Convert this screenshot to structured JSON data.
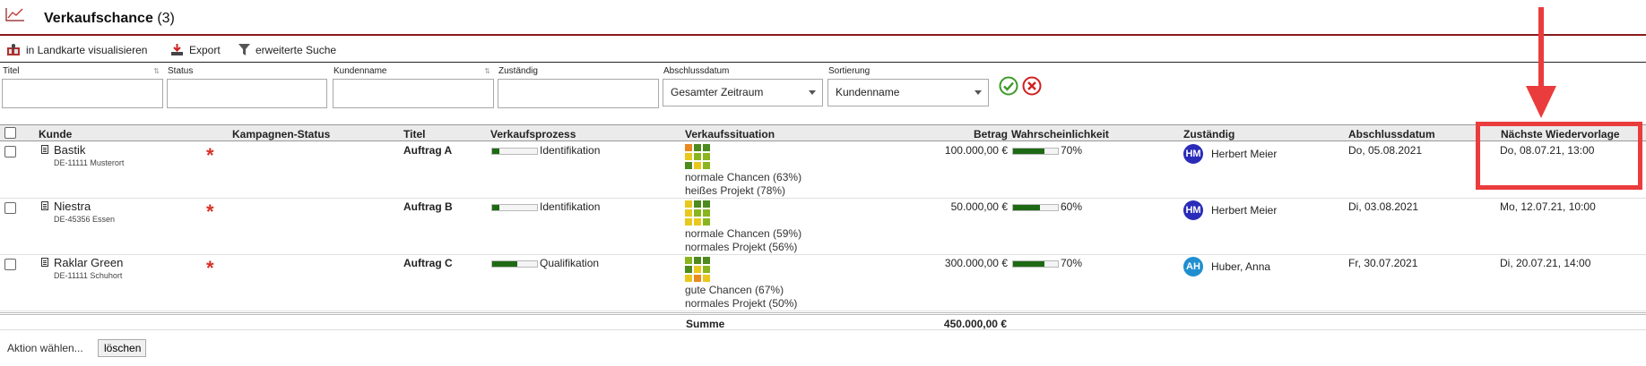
{
  "header": {
    "title": "Verkaufschance",
    "count": "(3)"
  },
  "toolbar": {
    "map_label": "in Landkarte visualisieren",
    "export_label": "Export",
    "search_label": "erweiterte Suche"
  },
  "filters": {
    "titel_label": "Titel",
    "status_label": "Status",
    "kundenname_label": "Kundenname",
    "zustaendig_label": "Zuständig",
    "abschlussdatum_label": "Abschlussdatum",
    "abschlussdatum_value": "Gesamter Zeitraum",
    "sortierung_label": "Sortierung",
    "sortierung_value": "Kundenname"
  },
  "columns": {
    "kunde": "Kunde",
    "kampagnen_status": "Kampagnen-Status",
    "titel": "Titel",
    "verkaufsprozess": "Verkaufsprozess",
    "verkaufssituation": "Verkaufssituation",
    "betrag": "Betrag",
    "wahrscheinlichkeit": "Wahrscheinlichkeit",
    "zustaendig": "Zuständig",
    "abschlussdatum": "Abschlussdatum",
    "naechste_wiedervorlage": "Nächste Wiedervorlage"
  },
  "rows": [
    {
      "kunde": "Bastik",
      "adresse": "DE-11111 Musterort",
      "star": "*",
      "titel": "Auftrag A",
      "prozess": "Identifikation",
      "prozess_progress": 0.15,
      "situation_1": "normale Chancen (63%)",
      "situation_2": "heißes Projekt (78%)",
      "betrag": "100.000,00 €",
      "wahrscheinlichkeit": "70%",
      "wahrscheinlichkeit_value": 0.7,
      "initialen": "HM",
      "avatar_color": "#2a2bb8",
      "zustaendig": "Herbert Meier",
      "abschlussdatum": "Do, 05.08.2021",
      "wiedervorlage": "Do, 08.07.21, 13:00"
    },
    {
      "kunde": "Niestra",
      "adresse": "DE-45356 Essen",
      "star": "*",
      "titel": "Auftrag B",
      "prozess": "Identifikation",
      "prozess_progress": 0.15,
      "situation_1": "normale Chancen (59%)",
      "situation_2": "normales Projekt (56%)",
      "betrag": "50.000,00 €",
      "wahrscheinlichkeit": "60%",
      "wahrscheinlichkeit_value": 0.6,
      "initialen": "HM",
      "avatar_color": "#2a2bb8",
      "zustaendig": "Herbert Meier",
      "abschlussdatum": "Di, 03.08.2021",
      "wiedervorlage": "Mo, 12.07.21, 10:00"
    },
    {
      "kunde": "Raklar Green",
      "adresse": "DE-11111 Schuhort",
      "star": "*",
      "titel": "Auftrag C",
      "prozess": "Qualifikation",
      "prozess_progress": 0.55,
      "situation_1": "gute Chancen (67%)",
      "situation_2": "normales Projekt (50%)",
      "betrag": "300.000,00 €",
      "wahrscheinlichkeit": "70%",
      "wahrscheinlichkeit_value": 0.7,
      "initialen": "AH",
      "avatar_color": "#1f8fd0",
      "zustaendig": "Huber, Anna",
      "abschlussdatum": "Fr, 30.07.2021",
      "wiedervorlage": "Di, 20.07.21, 14:00"
    }
  ],
  "summary": {
    "label": "Summe",
    "value": "450.000,00 €"
  },
  "actions": {
    "select_label": "Aktion wählen...",
    "delete_label": "löschen"
  },
  "colors": {
    "accent_red": "#ea3c3c",
    "header_rule": "#8b1a1a",
    "progress_green": "#1e6a14",
    "matrix_dark_green": "#4e8a1e",
    "matrix_green": "#8ab51e",
    "matrix_yellow": "#e8c81e",
    "matrix_orange": "#e88a1e"
  },
  "icons": {
    "app": "line-chart-icon",
    "map": "map-icon",
    "export": "export-icon",
    "filter": "filter-icon",
    "confirm": "checkmark-circle-icon",
    "cancel": "close-circle-icon",
    "customer": "document-icon",
    "annotation": "red-arrow-down-icon"
  }
}
